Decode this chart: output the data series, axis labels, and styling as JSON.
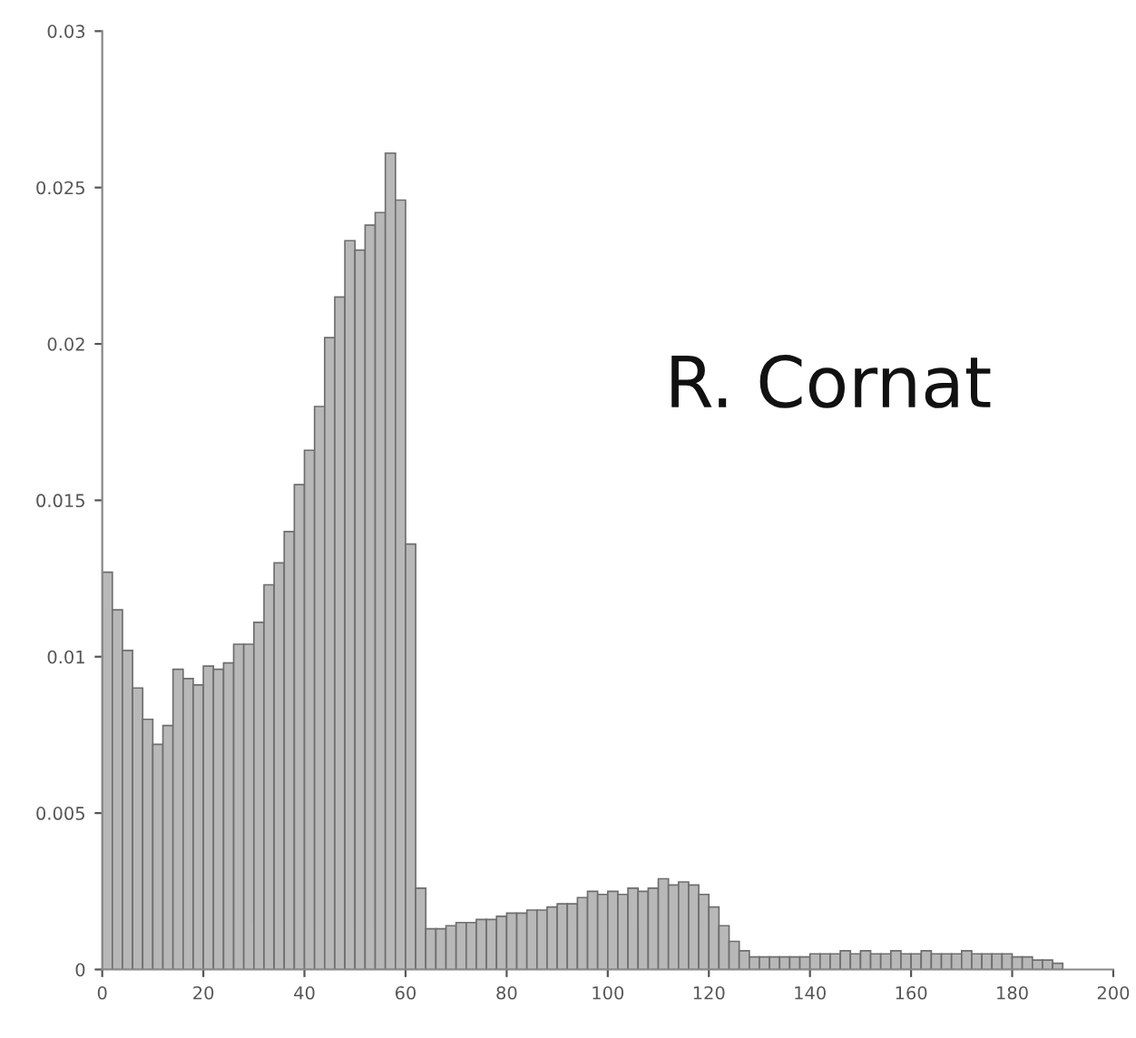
{
  "chart_data": {
    "type": "histogram",
    "bins": [
      0,
      2,
      4,
      6,
      8,
      10,
      12,
      14,
      16,
      18,
      20,
      22,
      24,
      26,
      28,
      30,
      32,
      34,
      36,
      38,
      40,
      42,
      44,
      46,
      48,
      50,
      52,
      54,
      56,
      58,
      60,
      62,
      64,
      66,
      68,
      70,
      72,
      74,
      76,
      78,
      80,
      82,
      84,
      86,
      88,
      90,
      92,
      94,
      96,
      98,
      100,
      102,
      104,
      106,
      108,
      110,
      112,
      114,
      116,
      118,
      120,
      122,
      124,
      126,
      128,
      130,
      132,
      134,
      136,
      138,
      140,
      142,
      144,
      146,
      148,
      150,
      152,
      154,
      156,
      158,
      160,
      162,
      164,
      166,
      168,
      170,
      172,
      174,
      176,
      178,
      180,
      182,
      184,
      186,
      188,
      190
    ],
    "values": [
      0.0127,
      0.0115,
      0.0102,
      0.009,
      0.008,
      0.0072,
      0.0078,
      0.0096,
      0.0093,
      0.0091,
      0.0097,
      0.0096,
      0.0098,
      0.0104,
      0.0104,
      0.0111,
      0.0123,
      0.013,
      0.014,
      0.0155,
      0.0166,
      0.018,
      0.0202,
      0.0215,
      0.0233,
      0.023,
      0.0238,
      0.0242,
      0.0261,
      0.0246,
      0.0136,
      0.0026,
      0.0013,
      0.0013,
      0.0014,
      0.0015,
      0.0015,
      0.0016,
      0.0016,
      0.0017,
      0.0018,
      0.0018,
      0.0019,
      0.0019,
      0.002,
      0.0021,
      0.0021,
      0.0023,
      0.0025,
      0.0024,
      0.0025,
      0.0024,
      0.0026,
      0.0025,
      0.0026,
      0.0029,
      0.0027,
      0.0028,
      0.0027,
      0.0024,
      0.002,
      0.0014,
      0.0009,
      0.0006,
      0.0004,
      0.0004,
      0.0004,
      0.0004,
      0.0004,
      0.0004,
      0.0005,
      0.0005,
      0.0005,
      0.0006,
      0.0005,
      0.0006,
      0.0005,
      0.0005,
      0.0006,
      0.0005,
      0.0005,
      0.0006,
      0.0005,
      0.0005,
      0.0005,
      0.0006,
      0.0005,
      0.0005,
      0.0005,
      0.0005,
      0.0004,
      0.0004,
      0.0003,
      0.0003,
      0.0002
    ],
    "color": "#b8b8b8",
    "xlim": [
      0,
      200
    ],
    "xticks": [
      0,
      20,
      40,
      60,
      80,
      100,
      120,
      140,
      160,
      180,
      200
    ],
    "ylim": [
      0,
      0.03
    ],
    "yticks": [
      0,
      0.005,
      0.01,
      0.015,
      0.02,
      0.025,
      0.03
    ],
    "grid": false,
    "annotations": [
      "R. Cornat"
    ]
  }
}
